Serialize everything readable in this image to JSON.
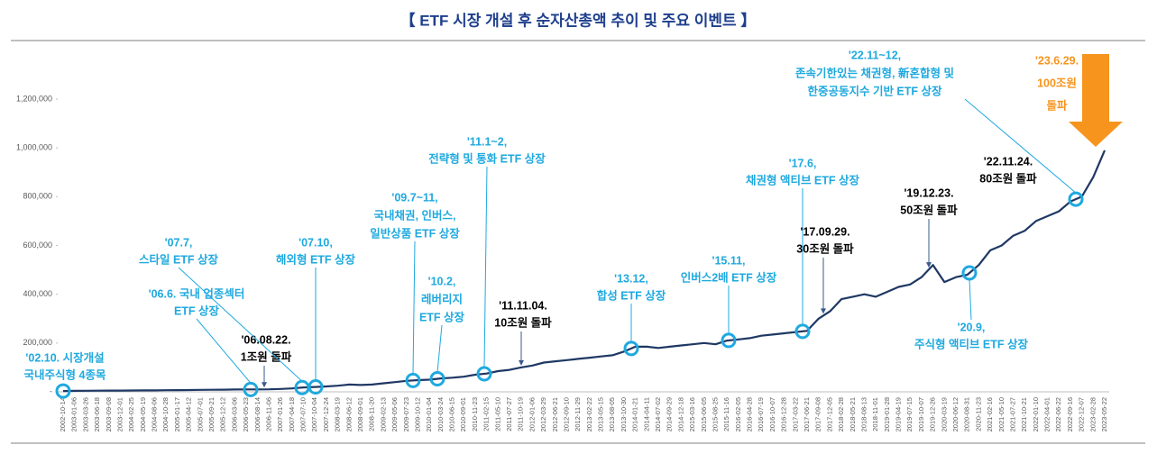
{
  "chart_data": {
    "type": "line",
    "title": "【  ETF 시장 개설 후 순자산총액 추이 및 주요 이벤트  】",
    "color": "#1f3864",
    "ylim": [
      0,
      1200000
    ],
    "yticks": [
      {
        "value": 0,
        "label": "-"
      },
      {
        "value": 200000,
        "label": "200,000"
      },
      {
        "value": 400000,
        "label": "400,000"
      },
      {
        "value": 600000,
        "label": "600,000"
      },
      {
        "value": 800000,
        "label": "800,000"
      },
      {
        "value": 1000000,
        "label": "1,000,000"
      },
      {
        "value": 1200000,
        "label": "1,200,000"
      }
    ],
    "grid": false,
    "categories": [
      "2002-10-14",
      "2003-01-06",
      "2003-03-26",
      "2003-06-18",
      "2003-09-08",
      "2003-12-01",
      "2004-02-25",
      "2004-05-19",
      "2004-08-06",
      "2004-10-28",
      "2005-01-17",
      "2005-04-12",
      "2005-07-01",
      "2005-09-21",
      "2005-12-12",
      "2006-03-06",
      "2006-05-23",
      "2006-08-14",
      "2006-11-06",
      "2007-01-26",
      "2007-04-18",
      "2007-07-10",
      "2007-10-04",
      "2007-12-24",
      "2008-03-19",
      "2008-06-12",
      "2008-09-01",
      "2008-11-20",
      "2009-02-13",
      "2009-05-06",
      "2009-07-23",
      "2009-10-12",
      "2010-01-04",
      "2010-03-24",
      "2010-06-15",
      "2010-09-01",
      "2010-11-23",
      "2011-02-15",
      "2011-05-10",
      "2011-07-27",
      "2011-10-19",
      "2012-01-06",
      "2012-03-29",
      "2012-06-21",
      "2012-09-10",
      "2012-11-29",
      "2013-02-22",
      "2013-05-15",
      "2013-08-05",
      "2013-10-30",
      "2014-01-21",
      "2014-04-11",
      "2014-07-02",
      "2014-09-29",
      "2014-12-18",
      "2015-03-16",
      "2015-06-05",
      "2015-08-25",
      "2015-11-16",
      "2016-02-05",
      "2016-04-28",
      "2016-07-19",
      "2016-10-07",
      "2016-12-28",
      "2017-03-22",
      "2017-06-21",
      "2017-09-08",
      "2017-12-05",
      "2018-02-28",
      "2018-05-21",
      "2018-08-13",
      "2018-11-01",
      "2019-01-28",
      "2019-04-19",
      "2019-07-15",
      "2019-10-07",
      "2019-12-26",
      "2020-03-19",
      "2020-06-12",
      "2020-08-31",
      "2020-11-23",
      "2021-02-16",
      "2021-05-10",
      "2021-07-27",
      "2021-10-21",
      "2022-01-10",
      "2022-04-01",
      "2022-06-22",
      "2022-09-16",
      "2022-12-07",
      "2023-02-28",
      "2023-05-22"
    ],
    "values": [
      3444,
      4000,
      4500,
      4800,
      5000,
      5200,
      5500,
      5800,
      6000,
      6500,
      7000,
      7500,
      8000,
      8500,
      9000,
      9500,
      9800,
      10000,
      10500,
      12000,
      14000,
      18000,
      20000,
      22000,
      25000,
      30000,
      28000,
      30000,
      35000,
      40000,
      45000,
      48000,
      50000,
      55000,
      58000,
      62000,
      70000,
      75000,
      85000,
      90000,
      100000,
      108000,
      120000,
      125000,
      130000,
      135000,
      140000,
      145000,
      150000,
      165000,
      185000,
      185000,
      180000,
      185000,
      190000,
      195000,
      200000,
      195000,
      210000,
      215000,
      220000,
      230000,
      235000,
      240000,
      245000,
      250000,
      300000,
      330000,
      380000,
      390000,
      400000,
      390000,
      410000,
      430000,
      440000,
      470000,
      520000,
      450000,
      470000,
      480000,
      520000,
      580000,
      600000,
      640000,
      660000,
      700000,
      720000,
      740000,
      780000,
      800000,
      880000,
      990000
    ],
    "annotations": [
      {
        "lines": [
          "'02.10. 시장개설",
          "국내주식형 4종목"
        ],
        "color": "#1fa9df"
      },
      {
        "lines": [
          "'06.6. 국내 업종섹터",
          "ETF 상장"
        ],
        "color": "#1fa9df"
      },
      {
        "lines": [
          "'06.08.22.",
          "1조원 돌파"
        ],
        "color": "#000000"
      },
      {
        "lines": [
          "'07.7,",
          "스타일 ETF 상장"
        ],
        "color": "#1fa9df"
      },
      {
        "lines": [
          "'07.10,",
          "해외형 ETF 상장"
        ],
        "color": "#1fa9df"
      },
      {
        "lines": [
          "'09.7~11,",
          "국내채권, 인버스,",
          "일반상품 ETF 상장"
        ],
        "color": "#1fa9df"
      },
      {
        "lines": [
          "'10.2,",
          "레버리지",
          "ETF 상장"
        ],
        "color": "#1fa9df"
      },
      {
        "lines": [
          "'11.1~2,",
          "전략형 및 통화 ETF 상장"
        ],
        "color": "#1fa9df"
      },
      {
        "lines": [
          "'11.11.04.",
          "10조원 돌파"
        ],
        "color": "#000000"
      },
      {
        "lines": [
          "'13.12,",
          "합성 ETF 상장"
        ],
        "color": "#1fa9df"
      },
      {
        "lines": [
          "'15.11,",
          "인버스2배 ETF 상장"
        ],
        "color": "#1fa9df"
      },
      {
        "lines": [
          "'17.6,",
          "채권형 액티브 ETF 상장"
        ],
        "color": "#1fa9df"
      },
      {
        "lines": [
          "'17.09.29.",
          "30조원 돌파"
        ],
        "color": "#000000"
      },
      {
        "lines": [
          "'19.12.23.",
          "50조원 돌파"
        ],
        "color": "#000000"
      },
      {
        "lines": [
          "'20.9,",
          "주식형 액티브 ETF 상장"
        ],
        "color": "#1fa9df"
      },
      {
        "lines": [
          "'22.11.24.",
          "80조원 돌파"
        ],
        "color": "#000000"
      },
      {
        "lines": [
          "'22.11~12,",
          "존속기한있는 채권형, 新혼합형 및",
          "한중공동지수 기반 ETF 상장"
        ],
        "color": "#1fa9df"
      },
      {
        "lines": [
          "'23.6.29.",
          "100조원",
          "돌파"
        ],
        "color": "#f7941d"
      }
    ]
  }
}
